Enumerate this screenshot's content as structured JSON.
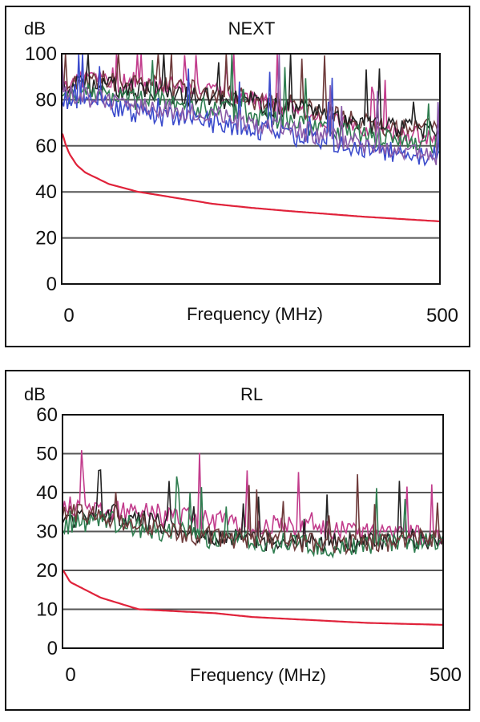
{
  "chart_data": [
    {
      "type": "line",
      "title": "NEXT",
      "ylabel": "dB",
      "xlabel": "Frequency (MHz)",
      "xlim": [
        0,
        500
      ],
      "ylim": [
        0,
        100
      ],
      "yticks": [
        "0",
        "20",
        "40",
        "60",
        "80",
        "100"
      ],
      "xticks": [
        "0",
        "500"
      ],
      "grid": true,
      "noisy_series": [
        {
          "color": "#c23c8c",
          "x": [
            0,
            25,
            50,
            75,
            100,
            125,
            150,
            175,
            200,
            225,
            250,
            275,
            300,
            325,
            350,
            375,
            400,
            425,
            450,
            475,
            500
          ],
          "values": [
            86,
            88,
            90,
            87,
            89,
            86,
            85,
            84,
            84,
            82,
            80,
            78,
            76,
            74,
            72,
            70,
            67,
            66,
            65,
            64,
            63
          ]
        },
        {
          "color": "#6e3a3a",
          "x": [
            0,
            25,
            50,
            75,
            100,
            125,
            150,
            175,
            200,
            225,
            250,
            275,
            300,
            325,
            350,
            375,
            400,
            425,
            450,
            475,
            500
          ],
          "values": [
            88,
            87,
            89,
            88,
            86,
            87,
            85,
            84,
            83,
            82,
            80,
            79,
            78,
            76,
            74,
            72,
            70,
            68,
            68,
            68,
            67
          ]
        },
        {
          "color": "#222222",
          "x": [
            0,
            25,
            50,
            75,
            100,
            125,
            150,
            175,
            200,
            225,
            250,
            275,
            300,
            325,
            350,
            375,
            400,
            425,
            450,
            475,
            500
          ],
          "values": [
            85,
            86,
            87,
            85,
            84,
            84,
            82,
            82,
            81,
            80,
            79,
            77,
            76,
            75,
            73,
            71,
            70,
            68,
            67,
            67,
            66
          ]
        },
        {
          "color": "#2e7d4f",
          "x": [
            0,
            25,
            50,
            75,
            100,
            125,
            150,
            175,
            200,
            225,
            250,
            275,
            300,
            325,
            350,
            375,
            400,
            425,
            450,
            475,
            500
          ],
          "values": [
            82,
            83,
            82,
            81,
            80,
            80,
            78,
            77,
            76,
            75,
            74,
            72,
            70,
            69,
            67,
            66,
            64,
            63,
            62,
            62,
            61
          ]
        },
        {
          "color": "#3b4bcc",
          "x": [
            0,
            25,
            50,
            75,
            100,
            125,
            150,
            175,
            200,
            225,
            250,
            275,
            300,
            325,
            350,
            375,
            400,
            425,
            450,
            475,
            500
          ],
          "values": [
            80,
            79,
            78,
            76,
            74,
            73,
            72,
            71,
            70,
            69,
            68,
            66,
            65,
            63,
            62,
            60,
            59,
            58,
            57,
            56,
            55
          ]
        },
        {
          "color": "#8a5aa8",
          "x": [
            0,
            25,
            50,
            75,
            100,
            125,
            150,
            175,
            200,
            225,
            250,
            275,
            300,
            325,
            350,
            375,
            400,
            425,
            450,
            475,
            500
          ],
          "values": [
            83,
            82,
            80,
            79,
            78,
            77,
            75,
            74,
            73,
            72,
            70,
            69,
            67,
            66,
            64,
            62,
            60,
            58,
            57,
            56,
            55
          ]
        }
      ],
      "limit_series": {
        "color": "#e0223a",
        "x": [
          1,
          5,
          10,
          20,
          31.25,
          62.5,
          100,
          200,
          250,
          300,
          400,
          500
        ],
        "values": [
          65.3,
          60.8,
          56.6,
          51.6,
          48.4,
          43.4,
          40.1,
          34.8,
          33.1,
          31.7,
          29.2,
          27.2
        ]
      }
    },
    {
      "type": "line",
      "title": "RL",
      "ylabel": "dB",
      "xlabel": "Frequency (MHz)",
      "xlim": [
        0,
        500
      ],
      "ylim": [
        0,
        60
      ],
      "yticks": [
        "0",
        "10",
        "20",
        "30",
        "40",
        "50",
        "60"
      ],
      "xticks": [
        "0",
        "500"
      ],
      "grid": true,
      "noisy_series": [
        {
          "color": "#c23c8c",
          "x": [
            0,
            25,
            50,
            75,
            100,
            125,
            150,
            175,
            200,
            225,
            250,
            275,
            300,
            325,
            350,
            375,
            400,
            425,
            450,
            475,
            500
          ],
          "values": [
            36,
            37,
            36,
            35,
            35,
            34,
            34,
            33,
            33,
            32,
            32,
            32,
            31,
            31,
            30,
            30,
            30,
            30,
            29,
            29,
            29
          ]
        },
        {
          "color": "#222222",
          "x": [
            0,
            25,
            50,
            75,
            100,
            125,
            150,
            175,
            200,
            225,
            250,
            275,
            300,
            325,
            350,
            375,
            400,
            425,
            450,
            475,
            500
          ],
          "values": [
            33,
            34,
            35,
            34,
            33,
            32,
            31,
            30,
            29,
            28,
            28,
            27,
            27,
            27,
            27,
            27,
            28,
            28,
            28,
            28,
            28
          ]
        },
        {
          "color": "#2e7d4f",
          "x": [
            0,
            25,
            50,
            75,
            100,
            125,
            150,
            175,
            200,
            225,
            250,
            275,
            300,
            325,
            350,
            375,
            400,
            425,
            450,
            475,
            500
          ],
          "values": [
            31,
            32,
            33,
            32,
            31,
            30,
            30,
            29,
            28,
            28,
            27,
            27,
            27,
            26,
            26,
            26,
            26,
            27,
            27,
            27,
            27
          ]
        },
        {
          "color": "#6e3a3a",
          "x": [
            0,
            25,
            50,
            75,
            100,
            125,
            150,
            175,
            200,
            225,
            250,
            275,
            300,
            325,
            350,
            375,
            400,
            425,
            450,
            475,
            500
          ],
          "values": [
            34,
            35,
            34,
            33,
            32,
            31,
            30,
            29,
            29,
            28,
            28,
            28,
            28,
            27,
            27,
            27,
            27,
            27,
            28,
            28,
            28
          ]
        }
      ],
      "limit_series": {
        "color": "#e0223a",
        "x": [
          1,
          10,
          20,
          50,
          100,
          200,
          250,
          300,
          400,
          500
        ],
        "values": [
          20,
          17,
          16,
          13,
          10,
          9,
          8,
          7.5,
          6.5,
          6
        ]
      }
    }
  ]
}
